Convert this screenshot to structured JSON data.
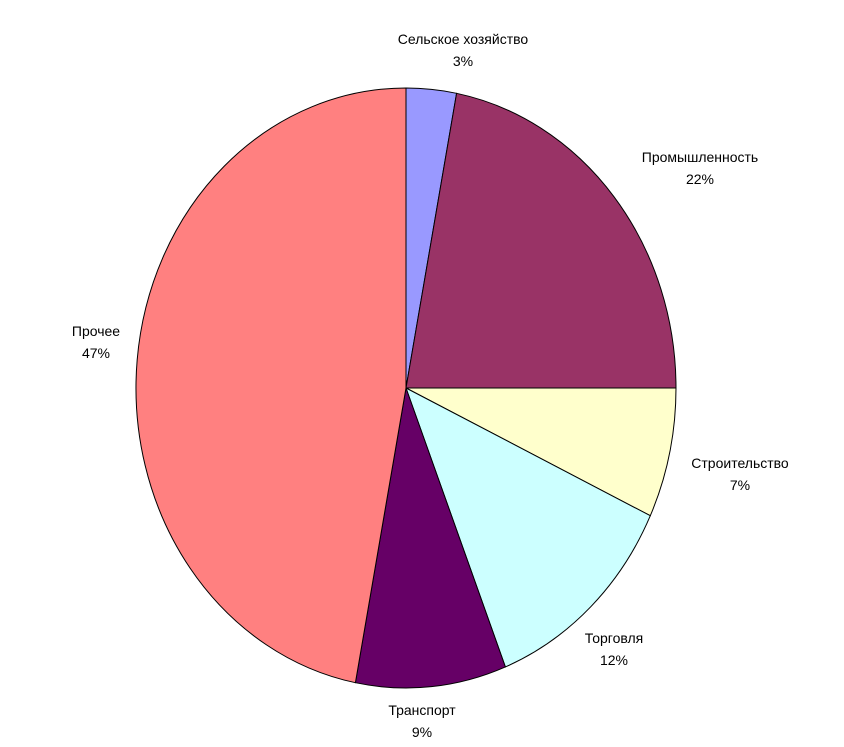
{
  "chart_data": {
    "type": "pie",
    "title": "",
    "start_angle_deg": 0,
    "direction": "clockwise",
    "slices": [
      {
        "label": "Сельское хозяйство",
        "value": 3,
        "percent_label": "3%",
        "color": "#9999ff"
      },
      {
        "label": "Промышленность",
        "value": 22,
        "percent_label": "22%",
        "color": "#993366"
      },
      {
        "label": "Строительство",
        "value": 7,
        "percent_label": "7%",
        "color": "#ffffcc"
      },
      {
        "label": "Торговля",
        "value": 12,
        "percent_label": "12%",
        "color": "#ccffff"
      },
      {
        "label": "Транспорт",
        "value": 9,
        "percent_label": "9%",
        "color": "#660066"
      },
      {
        "label": "Прочее",
        "value": 47,
        "percent_label": "47%",
        "color": "#ff8080"
      }
    ]
  }
}
